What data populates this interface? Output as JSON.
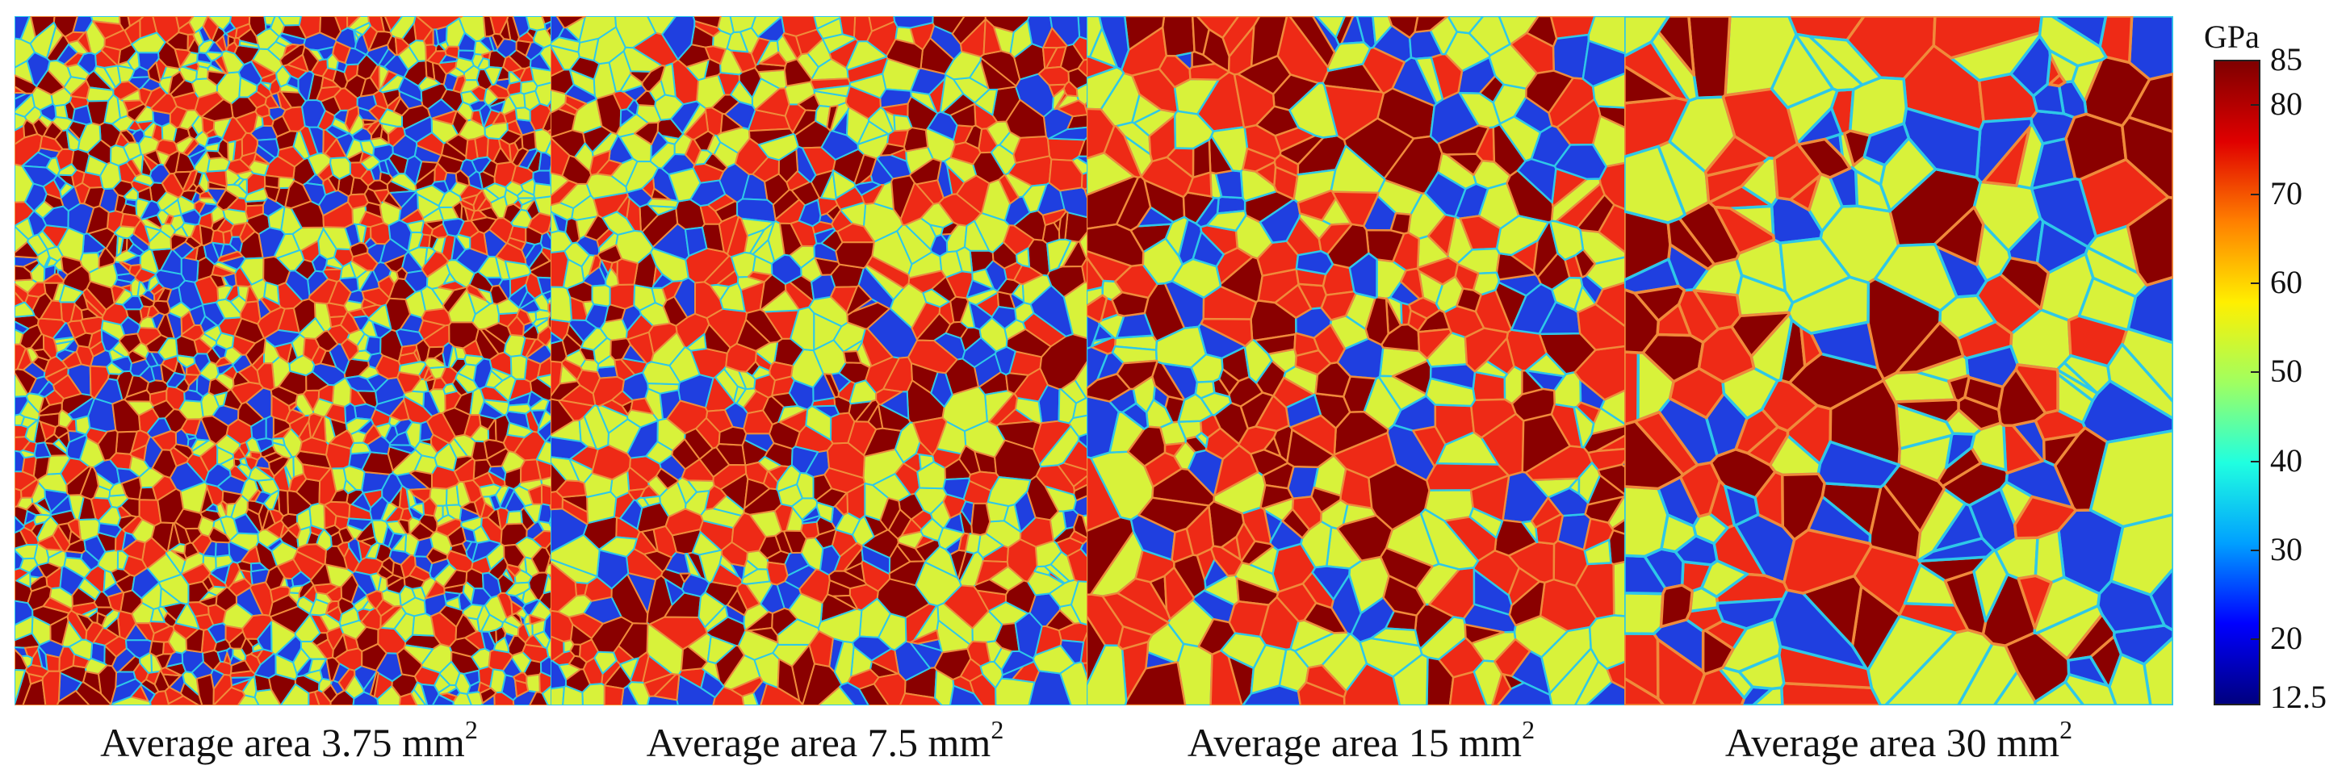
{
  "colorbar": {
    "unit": "GPa",
    "min": 12.5,
    "max": 85,
    "ticks": [
      "85",
      "80",
      "70",
      "60",
      "50",
      "40",
      "30",
      "20",
      "12.5"
    ],
    "tick_values": [
      85,
      80,
      70,
      60,
      50,
      40,
      30,
      20,
      12.5
    ],
    "colormap": [
      "#00007f",
      "#0000ff",
      "#00a0ff",
      "#20ffe0",
      "#a0ff60",
      "#ffef00",
      "#ff8000",
      "#e00000",
      "#7f0000"
    ]
  },
  "phase_colors": {
    "blue": "#1f3fe0",
    "yellow_green": "#d8f23a",
    "red": "#ee2a16",
    "dark_red": "#8a0000",
    "boundary_soft": "#2ec8e8",
    "boundary_hard": "#f08a3a"
  },
  "panels": [
    {
      "caption_text": "Average area 3.75 mm",
      "caption_sup": "2",
      "mean_grain_area_mm2": 3.75
    },
    {
      "caption_text": "Average area 7.5 mm",
      "caption_sup": "2",
      "mean_grain_area_mm2": 7.5
    },
    {
      "caption_text": "Average area 15 mm",
      "caption_sup": "2",
      "mean_grain_area_mm2": 15
    },
    {
      "caption_text": "Average area 30 mm",
      "caption_sup": "2",
      "mean_grain_area_mm2": 30
    }
  ]
}
